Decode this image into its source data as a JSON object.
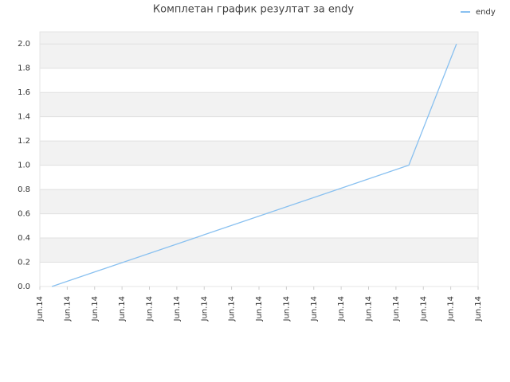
{
  "chart_data": {
    "type": "line",
    "title": "Комплетан график резултат за endy",
    "x": [
      0.44,
      13.47,
      15.21
    ],
    "series": [
      {
        "name": "endy",
        "color": "#88c0f0",
        "values": [
          0,
          1,
          2
        ]
      }
    ],
    "xlim": [
      0,
      16
    ],
    "xticks": [
      {
        "value": 0,
        "label": "Jun.14"
      },
      {
        "value": 1,
        "label": "Jun.14"
      },
      {
        "value": 2,
        "label": "Jun.14"
      },
      {
        "value": 3,
        "label": "Jun.14"
      },
      {
        "value": 4,
        "label": "Jun.14"
      },
      {
        "value": 5,
        "label": "Jun.14"
      },
      {
        "value": 6,
        "label": "Jun.14"
      },
      {
        "value": 7,
        "label": "Jun.14"
      },
      {
        "value": 8,
        "label": "Jun.14"
      },
      {
        "value": 9,
        "label": "Jun.14"
      },
      {
        "value": 10,
        "label": "Jun.14"
      },
      {
        "value": 11,
        "label": "Jun.14"
      },
      {
        "value": 12,
        "label": "Jun.14"
      },
      {
        "value": 13,
        "label": "Jun.14"
      },
      {
        "value": 14,
        "label": "Jun.14"
      },
      {
        "value": 15,
        "label": "Jun.14"
      },
      {
        "value": 16,
        "label": "Jun.14"
      }
    ],
    "ylim": [
      0,
      2.1
    ],
    "yticks": [
      {
        "value": 0,
        "label": "0.0"
      },
      0.2,
      0.4,
      0.6,
      0.8,
      {
        "value": 1,
        "label": "1.0"
      },
      1.2,
      1.4,
      1.6,
      1.8,
      {
        "value": 2,
        "label": "2.0"
      }
    ],
    "grid": true,
    "legend": "top-right"
  }
}
